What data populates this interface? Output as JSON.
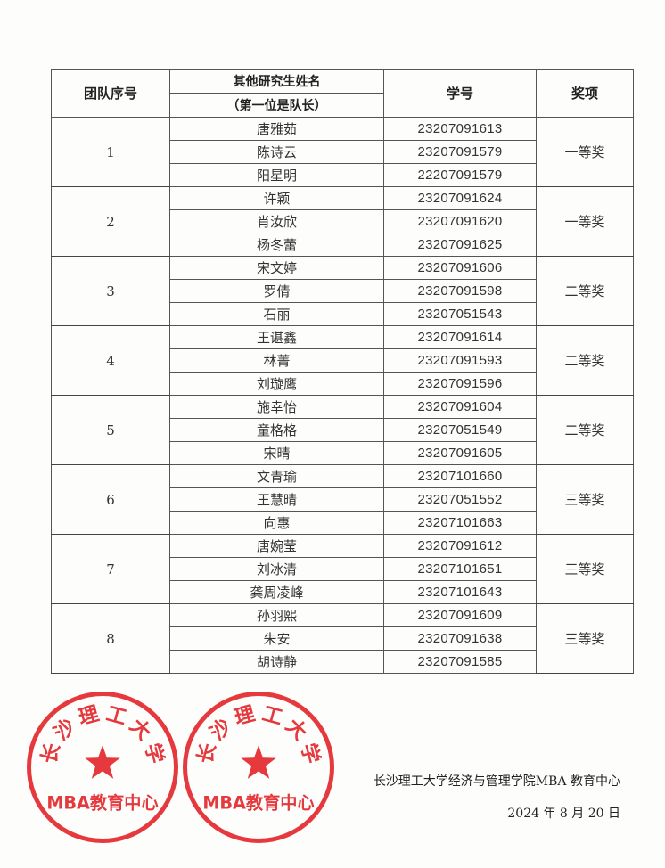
{
  "table": {
    "headers": {
      "team": "团队序号",
      "name_line1": "其他研究生姓名",
      "name_line2": "（第一位是队长）",
      "student_id": "学号",
      "award": "奖项"
    },
    "teams": [
      {
        "team": "1",
        "award": "一等奖",
        "members": [
          {
            "name": "唐雅茹",
            "id": "23207091613"
          },
          {
            "name": "陈诗云",
            "id": "23207091579"
          },
          {
            "name": "阳星明",
            "id": "22207091579"
          }
        ]
      },
      {
        "team": "2",
        "award": "一等奖",
        "members": [
          {
            "name": "许颖",
            "id": "23207091624"
          },
          {
            "name": "肖汝欣",
            "id": "23207091620"
          },
          {
            "name": "杨冬蕾",
            "id": "23207091625"
          }
        ]
      },
      {
        "team": "3",
        "award": "二等奖",
        "members": [
          {
            "name": "宋文婷",
            "id": "23207091606"
          },
          {
            "name": "罗倩",
            "id": "23207091598"
          },
          {
            "name": "石丽",
            "id": "23207051543"
          }
        ]
      },
      {
        "team": "4",
        "award": "二等奖",
        "members": [
          {
            "name": "王谌鑫",
            "id": "23207091614"
          },
          {
            "name": "林菁",
            "id": "23207091593"
          },
          {
            "name": "刘璇鹰",
            "id": "23207091596"
          }
        ]
      },
      {
        "team": "5",
        "award": "二等奖",
        "members": [
          {
            "name": "施幸怡",
            "id": "23207091604"
          },
          {
            "name": "童格格",
            "id": "23207051549"
          },
          {
            "name": "宋晴",
            "id": "23207091605"
          }
        ]
      },
      {
        "team": "6",
        "award": "三等奖",
        "members": [
          {
            "name": "文青瑜",
            "id": "23207101660"
          },
          {
            "name": "王慧晴",
            "id": "23207051552"
          },
          {
            "name": "向惠",
            "id": "23207101663"
          }
        ]
      },
      {
        "team": "7",
        "award": "三等奖",
        "members": [
          {
            "name": "唐婉莹",
            "id": "23207091612"
          },
          {
            "name": "刘冰清",
            "id": "23207101651"
          },
          {
            "name": "龚周凌峰",
            "id": "23207101643"
          }
        ]
      },
      {
        "team": "8",
        "award": "三等奖",
        "members": [
          {
            "name": "孙羽熙",
            "id": "23207091609"
          },
          {
            "name": "朱安",
            "id": "23207091638"
          },
          {
            "name": "胡诗静",
            "id": "23207091585"
          }
        ]
      }
    ]
  },
  "footer": {
    "organization": "长沙理工大学经济与管理学院MBA 教育中心",
    "date": "2024 年 8 月 20 日"
  },
  "stamp": {
    "top_text": "长沙理工大学",
    "bottom_text": "MBA教育中心",
    "color": "#e5393e"
  }
}
